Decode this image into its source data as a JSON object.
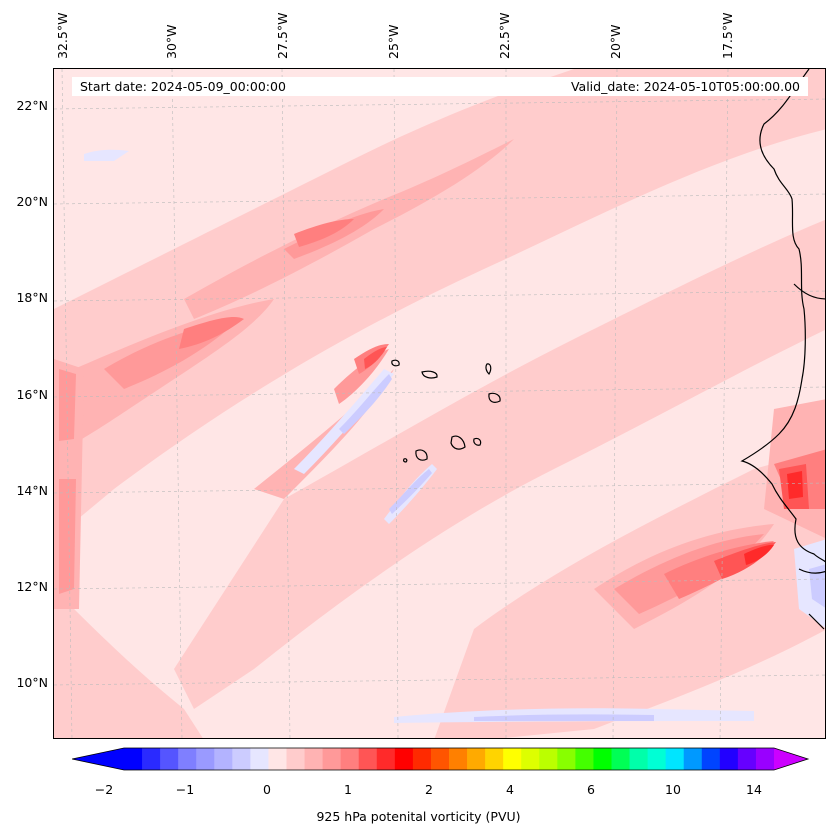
{
  "map": {
    "title_start": "Start date: 2024-05-09_00:00:00",
    "title_valid": "Valid_date: 2024-05-10T05:00:00.00",
    "longitude_labels": [
      "32.5°W",
      "30°W",
      "27.5°W",
      "25°W",
      "22.5°W",
      "20°W",
      "17.5°W"
    ],
    "latitude_labels": [
      "22°N",
      "20°N",
      "18°N",
      "16°N",
      "14°N",
      "12°N",
      "10°N"
    ],
    "variable": "925 hPa potenital vorticity (PVU)"
  },
  "colorbar": {
    "label": "925 hPa potenital vorticity (PVU)",
    "tick_labels": [
      "−2",
      "−1",
      "0",
      "1",
      "2",
      "4",
      "6",
      "10",
      "14"
    ],
    "colors": [
      "#0000ff",
      "#2a2aff",
      "#5555ff",
      "#7f7fff",
      "#9a9aff",
      "#b3b3ff",
      "#ccccff",
      "#e6e6ff",
      "#ffe6e6",
      "#ffcccc",
      "#ffb3b3",
      "#ff9999",
      "#ff7f7f",
      "#ff5555",
      "#ff2a2a",
      "#ff0000",
      "#ff2a00",
      "#ff5500",
      "#ff8000",
      "#ffaa00",
      "#ffd400",
      "#ffff00",
      "#ddff00",
      "#bbff00",
      "#88ff00",
      "#44ff00",
      "#00ff00",
      "#00ff55",
      "#00ffaa",
      "#00ffd5",
      "#00e5ff",
      "#0099ff",
      "#0044ff",
      "#2200ff",
      "#6600ff",
      "#9900ff"
    ],
    "under_color": "#0000ff",
    "over_color": "#cc00ff"
  },
  "palette": {
    "light_pink": "#ffe6e6",
    "pink": "#ffcccc",
    "mid_pink": "#ffb3b3",
    "salmon": "#ff9999",
    "red_light": "#ff7f7f",
    "red": "#ff5555",
    "red_strong": "#ff2a2a",
    "blue_light": "#e6e6ff",
    "blue": "#ccccff",
    "blue_mid": "#b3b3ff"
  }
}
